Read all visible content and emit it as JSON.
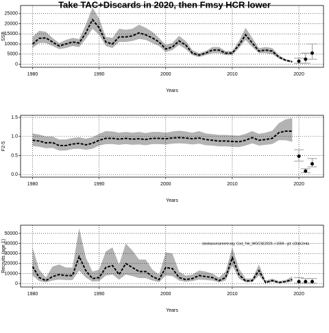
{
  "title": "Take TAC+Discards in 2020, then Fmsy HCR lower",
  "chart_data": [
    {
      "type": "line",
      "ylabel": "SSB",
      "xlabel": "Years",
      "xlim": [
        1978.2,
        2023.7
      ],
      "ylim": [
        -1500,
        29000
      ],
      "xticks": [
        1980,
        1990,
        2000,
        2010,
        2020
      ],
      "yticks": [
        0,
        5000,
        10000,
        15000,
        20000,
        25000
      ],
      "grid": true,
      "color": "#000000",
      "band_color": "#b3b3b3",
      "projection_color": "#999999",
      "x": [
        1980,
        1981,
        1982,
        1983,
        1984,
        1985,
        1986,
        1987,
        1988,
        1989,
        1990,
        1991,
        1992,
        1993,
        1994,
        1995,
        1996,
        1997,
        1998,
        1999,
        2000,
        2001,
        2002,
        2003,
        2004,
        2005,
        2006,
        2007,
        2008,
        2009,
        2010,
        2011,
        2012,
        2013,
        2014,
        2015,
        2016,
        2017,
        2018,
        2019
      ],
      "values": [
        10000,
        12800,
        13000,
        11000,
        9000,
        10000,
        11000,
        10500,
        15500,
        22000,
        18000,
        11000,
        10000,
        13500,
        13500,
        14000,
        15500,
        14500,
        13000,
        11000,
        7500,
        8500,
        11500,
        9500,
        5500,
        4500,
        5500,
        7000,
        7000,
        5500,
        5500,
        9500,
        14500,
        10500,
        6500,
        7000,
        6500,
        3500,
        2000,
        1200
      ],
      "upper": [
        13500,
        16500,
        16000,
        13000,
        10500,
        12000,
        13000,
        12500,
        19500,
        28000,
        22500,
        13500,
        13000,
        17500,
        17000,
        17500,
        19500,
        18000,
        16000,
        13000,
        9500,
        10500,
        14000,
        11500,
        7000,
        5500,
        6500,
        8500,
        8500,
        6500,
        6500,
        11500,
        18000,
        13000,
        8000,
        8500,
        8000,
        4500,
        2500,
        1800
      ],
      "lower": [
        8000,
        10500,
        10500,
        9000,
        7500,
        8000,
        9000,
        8500,
        12500,
        17500,
        14500,
        9000,
        8000,
        11000,
        11000,
        11500,
        12500,
        12000,
        10500,
        9000,
        6000,
        7000,
        9500,
        7500,
        4500,
        3500,
        4500,
        5500,
        5500,
        4500,
        4500,
        8000,
        12000,
        8500,
        5500,
        5500,
        5000,
        2800,
        1500,
        800
      ],
      "projection": {
        "x": [
          2020,
          2021,
          2022
        ],
        "values": [
          1500,
          2500,
          5500
        ],
        "lower": [
          500,
          500,
          2500
        ],
        "upper": [
          3000,
          5500,
          10000
        ]
      }
    },
    {
      "type": "line",
      "ylabel": "F2-5",
      "xlabel": "Years",
      "xlim": [
        1978.2,
        2023.7
      ],
      "ylim": [
        -0.07,
        1.555
      ],
      "xticks": [
        1980,
        1990,
        2000,
        2010,
        2020
      ],
      "yticks": [
        {
          "value": 0,
          "label": "0.0"
        },
        0.5,
        {
          "value": 1,
          "label": "1.0"
        },
        1.5
      ],
      "grid": true,
      "color": "#000000",
      "band_color": "#b3b3b3",
      "projection_color": "#999999",
      "x": [
        1980,
        1981,
        1982,
        1983,
        1984,
        1985,
        1986,
        1987,
        1988,
        1989,
        1990,
        1991,
        1992,
        1993,
        1994,
        1995,
        1996,
        1997,
        1998,
        1999,
        2000,
        2001,
        2002,
        2003,
        2004,
        2005,
        2006,
        2007,
        2008,
        2009,
        2010,
        2011,
        2012,
        2013,
        2014,
        2015,
        2016,
        2017,
        2018,
        2019
      ],
      "values": [
        0.9,
        0.88,
        0.83,
        0.84,
        0.76,
        0.76,
        0.8,
        0.82,
        0.78,
        0.82,
        0.9,
        0.95,
        0.95,
        0.93,
        0.95,
        0.93,
        0.94,
        0.92,
        0.95,
        0.95,
        0.94,
        0.96,
        0.97,
        0.96,
        0.94,
        0.96,
        0.92,
        0.9,
        0.88,
        0.88,
        0.87,
        0.86,
        0.9,
        0.97,
        0.9,
        0.92,
        0.95,
        1.1,
        1.14,
        1.14
      ],
      "upper": [
        1.08,
        1.05,
        1.0,
        1.0,
        0.92,
        0.92,
        0.96,
        0.98,
        0.94,
        0.98,
        1.07,
        1.14,
        1.13,
        1.1,
        1.12,
        1.1,
        1.12,
        1.09,
        1.12,
        1.12,
        1.1,
        1.13,
        1.15,
        1.13,
        1.1,
        1.14,
        1.08,
        1.06,
        1.04,
        1.04,
        1.03,
        1.02,
        1.07,
        1.14,
        1.07,
        1.1,
        1.15,
        1.35,
        1.45,
        1.48
      ],
      "lower": [
        0.75,
        0.73,
        0.69,
        0.7,
        0.63,
        0.63,
        0.67,
        0.68,
        0.65,
        0.68,
        0.76,
        0.8,
        0.8,
        0.78,
        0.8,
        0.78,
        0.79,
        0.77,
        0.8,
        0.8,
        0.79,
        0.81,
        0.82,
        0.81,
        0.79,
        0.81,
        0.77,
        0.76,
        0.74,
        0.74,
        0.73,
        0.72,
        0.76,
        0.82,
        0.76,
        0.78,
        0.8,
        0.9,
        0.9,
        0.86
      ],
      "projection": {
        "x": [
          2020,
          2021,
          2022
        ],
        "values": [
          0.48,
          0.09,
          0.28
        ],
        "lower": [
          0.35,
          0.05,
          0.2
        ],
        "upper": [
          0.65,
          0.15,
          0.42
        ]
      }
    },
    {
      "type": "line",
      "ylabel": "Recruits (age 1)",
      "xlabel": "Years",
      "xlim": [
        1978.2,
        2023.7
      ],
      "ylim": [
        -3400,
        58200
      ],
      "xticks": [
        1980,
        1990,
        2000,
        2010,
        2020
      ],
      "yticks": [
        0,
        10000,
        20000,
        30000,
        40000,
        50000
      ],
      "grid": true,
      "color": "#000000",
      "band_color": "#b3b3b3",
      "projection_color": "#999999",
      "annotation": "stockassessment.org, Cod_7ek_WGCSE2020, r.1559 - git: c2bdc2e4a",
      "x": [
        1980,
        1981,
        1982,
        1983,
        1984,
        1985,
        1986,
        1987,
        1988,
        1989,
        1990,
        1991,
        1992,
        1993,
        1994,
        1995,
        1996,
        1997,
        1998,
        1999,
        2000,
        2001,
        2002,
        2003,
        2004,
        2005,
        2006,
        2007,
        2008,
        2009,
        2010,
        2011,
        2012,
        2013,
        2014,
        2015,
        2016,
        2017,
        2018,
        2019
      ],
      "values": [
        17000,
        6000,
        3000,
        7000,
        9000,
        8000,
        8000,
        27000,
        13000,
        5000,
        6000,
        16000,
        18000,
        9000,
        20000,
        16000,
        12000,
        12000,
        7000,
        4000,
        16000,
        15000,
        6000,
        4000,
        5000,
        8000,
        7000,
        6000,
        3000,
        6000,
        26000,
        9000,
        2500,
        3000,
        13000,
        1000,
        3000,
        1000,
        2000,
        4000
      ],
      "upper": [
        36000,
        14000,
        6000,
        17000,
        19000,
        16000,
        16000,
        55000,
        26000,
        12000,
        14000,
        32000,
        36000,
        19000,
        40000,
        33000,
        24000,
        24000,
        14000,
        9000,
        31000,
        30000,
        12000,
        8000,
        9000,
        13000,
        12000,
        10000,
        6000,
        12000,
        36000,
        15000,
        5000,
        5000,
        19000,
        3000,
        5000,
        2500,
        3500,
        7000
      ],
      "lower": [
        8000,
        2500,
        1200,
        3000,
        4000,
        3500,
        3500,
        13000,
        6000,
        2000,
        2500,
        8000,
        9000,
        4000,
        9000,
        7500,
        5500,
        5500,
        3000,
        1500,
        8000,
        7500,
        3000,
        1800,
        2500,
        4000,
        3500,
        3000,
        1200,
        3000,
        18000,
        5000,
        1200,
        1500,
        8000,
        400,
        1500,
        400,
        800,
        1800
      ],
      "projection": {
        "x": [
          2020,
          2021,
          2022
        ],
        "values": [
          2000,
          2000,
          2000
        ],
        "lower": [
          500,
          500,
          500
        ],
        "upper": [
          6000,
          5000,
          5000
        ]
      }
    }
  ]
}
